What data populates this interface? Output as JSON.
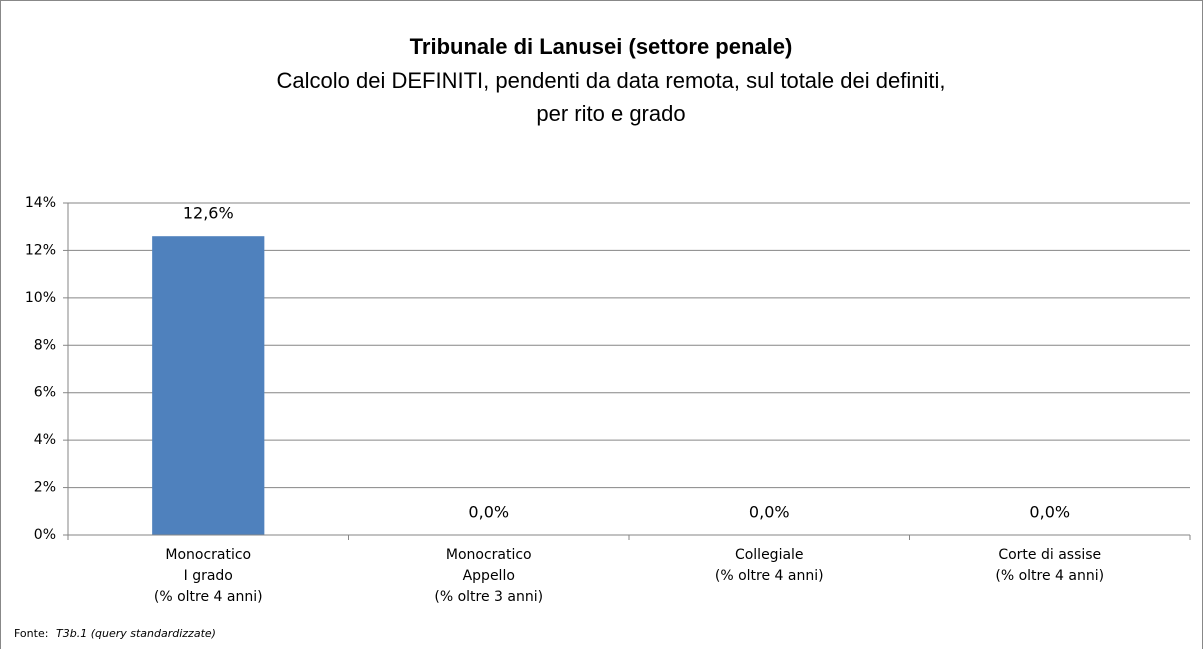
{
  "chart_data": {
    "type": "bar",
    "title": "Tribunale di Lanusei (settore penale)",
    "subtitle": [
      "Calcolo dei DEFINITI, pendenti da data remota, sul totale dei definiti,",
      "per rito e grado"
    ],
    "categories": [
      [
        "Monocratico",
        "I grado",
        "(% oltre 4 anni)"
      ],
      [
        "Monocratico",
        "Appello",
        "(% oltre 3 anni)"
      ],
      [
        "Collegiale",
        "(% oltre 4 anni)"
      ],
      [
        "Corte di assise",
        "(% oltre 4 anni)"
      ]
    ],
    "values": [
      12.6,
      0,
      0,
      0
    ],
    "value_labels": [
      "12,6%",
      "0,0%",
      "0,0%",
      "0,0%"
    ],
    "color": "#4f81bd",
    "ylim": [
      0,
      14
    ],
    "yticks": [
      {
        "value": 0,
        "label": "0%"
      },
      {
        "value": 2,
        "label": "2%"
      },
      {
        "value": 4,
        "label": "4%"
      },
      {
        "value": 6,
        "label": "6%"
      },
      {
        "value": 8,
        "label": "8%"
      },
      {
        "value": 10,
        "label": "10%"
      },
      {
        "value": 12,
        "label": "12%"
      },
      {
        "value": 14,
        "label": "14%"
      }
    ],
    "grid": true,
    "source": {
      "label": "Fonte:",
      "text": "T3b.1 (query standardizzate)"
    }
  }
}
